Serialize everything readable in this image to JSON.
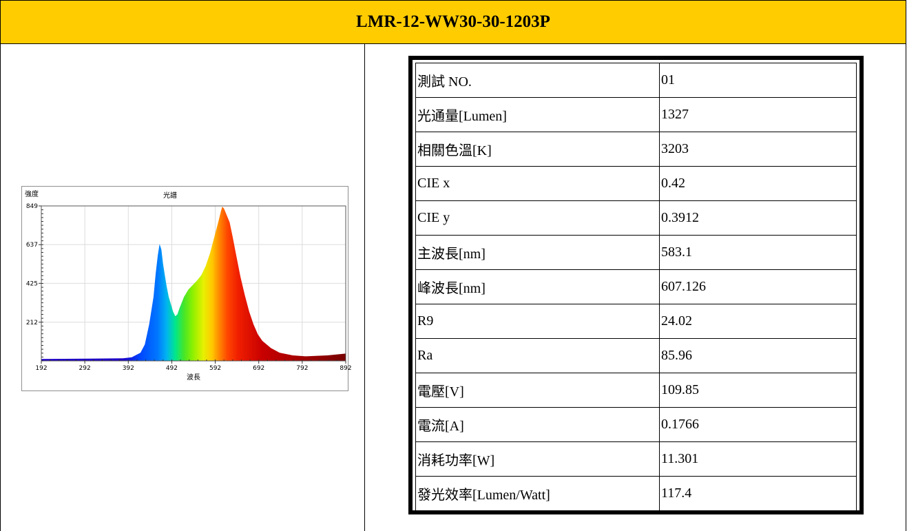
{
  "title": "LMR-12-WW30-30-1203P",
  "chart_data": {
    "type": "area",
    "title": "光譜",
    "xlabel": "波長",
    "ylabel": "強度",
    "xlim": [
      192,
      892
    ],
    "ylim": [
      0,
      849
    ],
    "x_ticks": [
      192,
      292,
      392,
      492,
      592,
      692,
      792,
      892
    ],
    "y_ticks": [
      212,
      425,
      637,
      849
    ],
    "grid": true,
    "fill": "visible-spectrum gradient",
    "series": [
      {
        "x": [
          192,
          300,
          380,
          400,
          420,
          430,
          440,
          450,
          455,
          460,
          464,
          468,
          472,
          476,
          480,
          485,
          490,
          495,
          500,
          505,
          510,
          520,
          530,
          540,
          550,
          560,
          570,
          580,
          590,
          600,
          605,
          608,
          612,
          618,
          625,
          632,
          640,
          650,
          660,
          670,
          680,
          690,
          700,
          720,
          740,
          770,
          800,
          850,
          892
        ],
        "y": [
          10,
          12,
          14,
          20,
          45,
          90,
          200,
          350,
          480,
          580,
          640,
          610,
          530,
          470,
          410,
          350,
          310,
          270,
          245,
          255,
          290,
          350,
          390,
          415,
          440,
          470,
          520,
          590,
          680,
          770,
          820,
          845,
          835,
          800,
          760,
          680,
          580,
          460,
          360,
          270,
          200,
          145,
          110,
          70,
          45,
          30,
          25,
          30,
          40
        ]
      }
    ]
  },
  "table": {
    "rows": [
      {
        "label": "測試 NO.",
        "value": "01"
      },
      {
        "label": "光通量[Lumen]",
        "value": "1327"
      },
      {
        "label": "相關色溫[K]",
        "value": "3203"
      },
      {
        "label": "CIE x",
        "value": "0.42"
      },
      {
        "label": "CIE y",
        "value": "0.3912"
      },
      {
        "label": "主波長[nm]",
        "value": "583.1"
      },
      {
        "label": "峰波長[nm]",
        "value": "607.126"
      },
      {
        "label": "R9",
        "value": "24.02"
      },
      {
        "label": "Ra",
        "value": "85.96"
      },
      {
        "label": "電壓[V]",
        "value": "109.85"
      },
      {
        "label": "電流[A]",
        "value": "0.1766"
      },
      {
        "label": "消耗功率[W]",
        "value": "11.301"
      },
      {
        "label": "發光效率[Lumen/Watt]",
        "value": "117.4"
      }
    ]
  }
}
